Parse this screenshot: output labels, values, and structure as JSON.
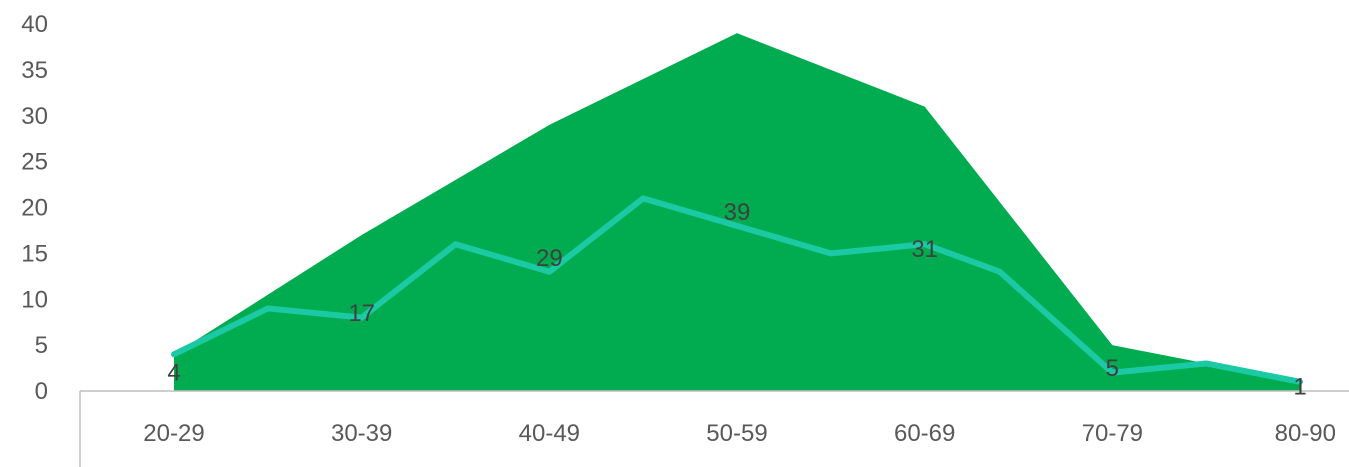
{
  "chart_data": {
    "type": "area",
    "title": "",
    "xlabel": "",
    "ylabel": "",
    "categories": [
      "20-29",
      "30-39",
      "40-49",
      "50-59",
      "60-69",
      "70-79",
      "80-90"
    ],
    "ylim": [
      0,
      40
    ],
    "yticks": [
      0,
      5,
      10,
      15,
      20,
      25,
      30,
      35,
      40
    ],
    "grid": false,
    "legend": "none",
    "series": [
      {
        "type": "area",
        "values": [
          4,
          17,
          29,
          39,
          31,
          5,
          1
        ],
        "data_labels": [
          "4",
          "17",
          "29",
          "39",
          "31",
          "5",
          "1"
        ],
        "color": "#00AC4F"
      },
      {
        "type": "line",
        "x": [
          0,
          0.5,
          1,
          1.5,
          2,
          2.5,
          3,
          3.5,
          4,
          4.4,
          5,
          5.5,
          6
        ],
        "values": [
          4,
          9,
          8,
          16,
          13,
          21,
          18,
          15,
          16,
          13,
          2,
          3,
          1
        ],
        "color": "#1BC9A4"
      }
    ]
  }
}
